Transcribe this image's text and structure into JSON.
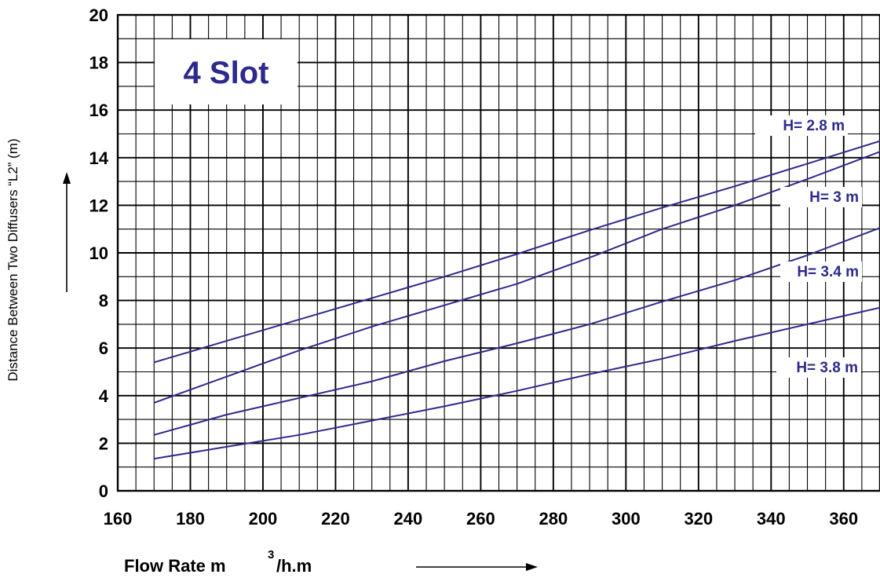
{
  "chart_data": {
    "type": "line",
    "title": "4 Slot",
    "xlabel": "Flow Rate  m",
    "xlabel_superscript": "3",
    "xlabel_suffix": "/h.m",
    "ylabel": "Distance Between Two Diffusers “L2” (m)",
    "xlim": [
      160,
      370
    ],
    "ylim": [
      0,
      20
    ],
    "x_ticks": [
      160,
      180,
      200,
      220,
      240,
      260,
      280,
      300,
      320,
      340,
      360
    ],
    "y_ticks": [
      0,
      2,
      4,
      6,
      8,
      10,
      12,
      14,
      16,
      18,
      20
    ],
    "grid": true,
    "line_color": "#2e2a8c",
    "label_color": "#2e2a8c",
    "series": [
      {
        "name": "H= 2.8 m",
        "points": [
          [
            170,
            5.4
          ],
          [
            190,
            6.3
          ],
          [
            210,
            7.2
          ],
          [
            230,
            8.1
          ],
          [
            250,
            9.0
          ],
          [
            270,
            9.95
          ],
          [
            290,
            10.95
          ],
          [
            310,
            11.9
          ],
          [
            330,
            12.8
          ],
          [
            350,
            13.75
          ],
          [
            370,
            14.7
          ]
        ]
      },
      {
        "name": "H= 3 m",
        "points": [
          [
            170,
            3.7
          ],
          [
            190,
            4.8
          ],
          [
            210,
            5.9
          ],
          [
            230,
            6.9
          ],
          [
            250,
            7.8
          ],
          [
            270,
            8.7
          ],
          [
            290,
            9.8
          ],
          [
            310,
            11.0
          ],
          [
            330,
            12.0
          ],
          [
            350,
            13.1
          ],
          [
            370,
            14.25
          ]
        ]
      },
      {
        "name": "H= 3.4 m",
        "points": [
          [
            170,
            2.35
          ],
          [
            190,
            3.2
          ],
          [
            210,
            3.9
          ],
          [
            230,
            4.6
          ],
          [
            250,
            5.45
          ],
          [
            270,
            6.2
          ],
          [
            290,
            7.0
          ],
          [
            310,
            7.95
          ],
          [
            330,
            8.85
          ],
          [
            350,
            9.9
          ],
          [
            370,
            11.05
          ]
        ]
      },
      {
        "name": "H= 3.8 m",
        "points": [
          [
            170,
            1.35
          ],
          [
            190,
            1.85
          ],
          [
            210,
            2.35
          ],
          [
            230,
            2.95
          ],
          [
            250,
            3.55
          ],
          [
            270,
            4.2
          ],
          [
            290,
            4.9
          ],
          [
            310,
            5.55
          ],
          [
            330,
            6.3
          ],
          [
            350,
            7.0
          ],
          [
            370,
            7.7
          ]
        ]
      }
    ]
  }
}
